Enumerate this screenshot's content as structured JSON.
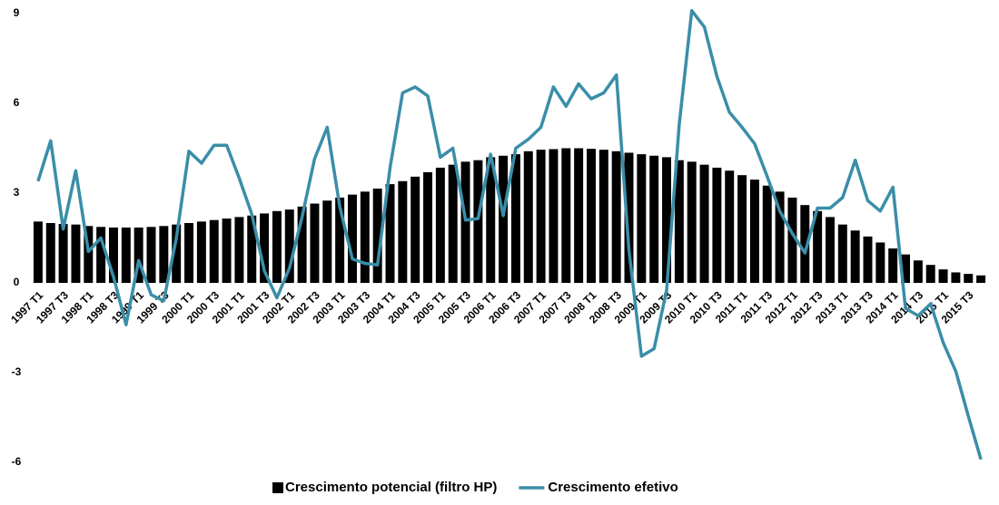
{
  "chart_data": {
    "type": "bar_line",
    "categories": [
      "1997 T1",
      null,
      "1997 T3",
      null,
      "1998 T1",
      null,
      "1998 T3",
      null,
      "1999 T1",
      null,
      "1999 T3",
      null,
      "2000 T1",
      null,
      "2000 T3",
      null,
      "2001 T1",
      null,
      "2001 T3",
      null,
      "2002 T1",
      null,
      "2002 T3",
      null,
      "2003 T1",
      null,
      "2003 T3",
      null,
      "2004 T1",
      null,
      "2004 T3",
      null,
      "2005 T1",
      null,
      "2005 T3",
      null,
      "2006 T1",
      null,
      "2006 T3",
      null,
      "2007 T1",
      null,
      "2007 T3",
      null,
      "2008 T1",
      null,
      "2008 T3",
      null,
      "2009 T1",
      null,
      "2009 T3",
      null,
      "2010 T1",
      null,
      "2010 T3",
      null,
      "2011 T1",
      null,
      "2011 T3",
      null,
      "2012 T1",
      null,
      "2012 T3",
      null,
      "2013 T1",
      null,
      "2013 T3",
      null,
      "2014 T1",
      null,
      "2014 T3",
      null,
      "2015 T1",
      null,
      "2015 T3",
      null
    ],
    "series": [
      {
        "name": "Crescimento potencial (filtro HP)",
        "type": "bar",
        "color": "#000000",
        "values": [
          2.05,
          2.0,
          1.97,
          1.95,
          1.9,
          1.87,
          1.85,
          1.85,
          1.85,
          1.87,
          1.9,
          1.95,
          2.0,
          2.05,
          2.1,
          2.15,
          2.2,
          2.25,
          2.32,
          2.4,
          2.45,
          2.55,
          2.65,
          2.75,
          2.85,
          2.95,
          3.05,
          3.15,
          3.3,
          3.4,
          3.55,
          3.7,
          3.85,
          3.95,
          4.05,
          4.1,
          4.2,
          4.25,
          4.3,
          4.4,
          4.45,
          4.47,
          4.5,
          4.5,
          4.48,
          4.45,
          4.4,
          4.35,
          4.3,
          4.25,
          4.2,
          4.1,
          4.05,
          3.95,
          3.85,
          3.75,
          3.6,
          3.45,
          3.25,
          3.05,
          2.85,
          2.6,
          2.4,
          2.2,
          1.95,
          1.75,
          1.55,
          1.35,
          1.15,
          0.95,
          0.75,
          0.6,
          0.45,
          0.35,
          0.3,
          0.25
        ]
      },
      {
        "name": "Crescimento efetivo",
        "type": "line",
        "color": "#3a8ea8",
        "values": [
          3.4,
          4.75,
          1.8,
          3.75,
          1.05,
          1.5,
          0.2,
          -1.4,
          0.75,
          -0.4,
          -0.6,
          1.5,
          4.4,
          4.0,
          4.6,
          4.6,
          3.5,
          2.3,
          0.4,
          -0.5,
          0.5,
          2.2,
          4.15,
          5.2,
          2.55,
          0.8,
          0.65,
          0.6,
          3.85,
          6.35,
          6.55,
          6.25,
          4.2,
          4.5,
          2.1,
          2.15,
          4.3,
          2.25,
          4.5,
          4.8,
          5.2,
          6.55,
          5.9,
          6.65,
          6.15,
          6.35,
          6.95,
          1.1,
          -2.45,
          -2.2,
          -0.25,
          5.3,
          9.1,
          8.55,
          6.9,
          5.7,
          5.2,
          4.65,
          3.55,
          2.4,
          1.65,
          1.0,
          2.5,
          2.5,
          2.85,
          4.1,
          2.75,
          2.4,
          3.2,
          -0.85,
          -1.1,
          -0.7,
          -2.0,
          -2.95,
          -4.45,
          -5.9
        ]
      }
    ],
    "ylim": [
      -6,
      9
    ],
    "yticks": [
      -6,
      -3,
      0,
      3,
      6,
      9
    ],
    "legend": "bottom"
  }
}
